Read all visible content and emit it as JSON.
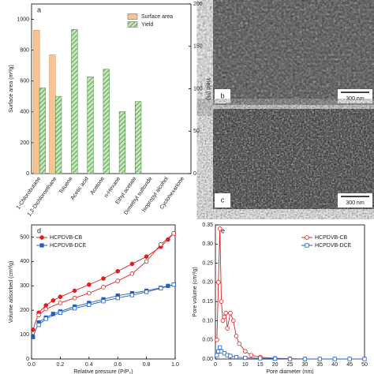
{
  "chart_data": [
    {
      "type": "bar",
      "label": "a",
      "categories": [
        "1-Chlorobutane",
        "1,2-Dichloroethane",
        "Toluene",
        "Acetic acid",
        "Acetone",
        "n-Hexane",
        "Ethyl acetate",
        "Dimethyl sulfoxide",
        "Isopropyl alcohol",
        "Cyclohexanone"
      ],
      "ylabel": "Surface area (m²/g)",
      "y2label": "Yield (%)",
      "series": [
        {
          "name": "Surface area",
          "color": "#f9c393",
          "values": [
            930,
            770,
            0,
            0,
            0,
            0,
            0,
            0,
            0,
            0
          ]
        },
        {
          "name": "Yield",
          "color": "#3a8a3a",
          "values": [
            101,
            91,
            170,
            114,
            123,
            73,
            85,
            0,
            0,
            0
          ],
          "axis": "y2"
        }
      ],
      "ylim": [
        0,
        1100
      ],
      "yticks": [
        0,
        200,
        400,
        600,
        800,
        1000
      ],
      "y2lim": [
        0,
        200
      ],
      "y2ticks": [
        0,
        50,
        100,
        150,
        200
      ],
      "legend": "upper right"
    },
    {
      "type": "line",
      "label": "d",
      "xlabel": "Relative pressure (P/P₀)",
      "ylabel": "Volume adsorbed (cm³/g)",
      "xlim": [
        0,
        1
      ],
      "xticks": [
        {
          "value": 0,
          "label": "0.0"
        },
        {
          "value": 0.2,
          "label": "0.2"
        },
        {
          "value": 0.4,
          "label": "0.4"
        },
        {
          "value": 0.6,
          "label": "0.6"
        },
        {
          "value": 0.8,
          "label": "0.8"
        },
        {
          "value": 1,
          "label": "1.0"
        }
      ],
      "ylim": [
        0,
        550
      ],
      "yticks": [
        0,
        100,
        200,
        300,
        400,
        500
      ],
      "legend": "upper left",
      "series": [
        {
          "name": "HCPDVB-CB",
          "color": "#e02020",
          "marker": "circle",
          "x": [
            0.01,
            0.05,
            0.1,
            0.15,
            0.2,
            0.3,
            0.4,
            0.5,
            0.6,
            0.7,
            0.8,
            0.9,
            0.95,
            0.99
          ],
          "values": [
            120,
            190,
            220,
            240,
            255,
            280,
            305,
            330,
            360,
            390,
            420,
            460,
            490,
            515
          ],
          "desorption_x": [
            0.99,
            0.9,
            0.8,
            0.7,
            0.6,
            0.5,
            0.4,
            0.3,
            0.2,
            0.1,
            0.05
          ],
          "desorption_values": [
            515,
            470,
            400,
            350,
            320,
            295,
            270,
            250,
            230,
            205,
            180
          ]
        },
        {
          "name": "HCPDVB-DCE",
          "color": "#1f5fbf",
          "marker": "square",
          "x": [
            0.01,
            0.05,
            0.1,
            0.15,
            0.2,
            0.3,
            0.4,
            0.5,
            0.6,
            0.7,
            0.8,
            0.9,
            0.95,
            0.99
          ],
          "values": [
            90,
            150,
            170,
            185,
            195,
            215,
            230,
            245,
            260,
            270,
            280,
            292,
            300,
            305
          ],
          "desorption_x": [
            0.99,
            0.9,
            0.8,
            0.7,
            0.6,
            0.5,
            0.4,
            0.3,
            0.2,
            0.1,
            0.05
          ],
          "desorption_values": [
            305,
            290,
            275,
            262,
            250,
            237,
            222,
            208,
            190,
            165,
            140
          ]
        }
      ]
    },
    {
      "type": "line",
      "label": "e",
      "xlabel": "Pore diameter (nm)",
      "ylabel": "Pore volume (cm³/g)",
      "xlim": [
        0,
        50
      ],
      "xticks": [
        0,
        5,
        10,
        15,
        20,
        25,
        30,
        35,
        40,
        45,
        50
      ],
      "ylim": [
        0,
        0.35
      ],
      "yticks": [
        {
          "value": 0,
          "label": "0.00"
        },
        0.05,
        {
          "value": 0.1,
          "label": "0.10"
        },
        0.15,
        {
          "value": 0.2,
          "label": "0.20"
        },
        0.25,
        {
          "value": 0.3,
          "label": "0.30"
        },
        0.35
      ],
      "legend": "upper right",
      "series": [
        {
          "name": "HCPDVB-CB",
          "color": "#e02020",
          "marker": "circle",
          "open": true,
          "x": [
            0.5,
            1,
            1.5,
            2,
            2.5,
            3,
            3.5,
            4,
            5,
            6,
            7,
            8,
            10,
            12,
            15,
            20,
            25,
            30
          ],
          "values": [
            0.05,
            0.2,
            0.34,
            0.15,
            0.1,
            0.11,
            0.12,
            0.08,
            0.12,
            0.1,
            0.06,
            0.04,
            0.02,
            0.01,
            0.005,
            0.002,
            0.001,
            0
          ]
        },
        {
          "name": "HCPDVB-DCE",
          "color": "#1f5fbf",
          "marker": "square",
          "open": true,
          "x": [
            0.5,
            1,
            1.5,
            2,
            3,
            4,
            5,
            7,
            10,
            15,
            20,
            25,
            30,
            35,
            40,
            45,
            50
          ],
          "values": [
            0.01,
            0.02,
            0.03,
            0.02,
            0.015,
            0.01,
            0.008,
            0.005,
            0.003,
            0.002,
            0.001,
            0,
            0,
            0,
            0,
            0,
            0
          ]
        }
      ]
    }
  ],
  "images": [
    {
      "label": "b",
      "scale": "300 nm"
    },
    {
      "label": "c",
      "scale": "300 nm"
    }
  ]
}
